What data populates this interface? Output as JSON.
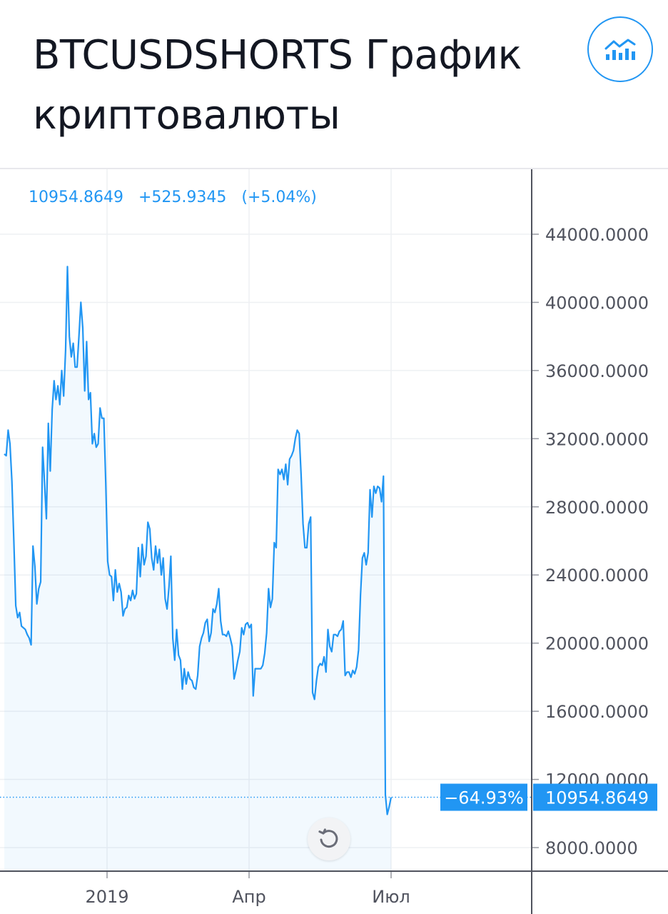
{
  "page": {
    "title": "BTCUSDSHORTS График криптовалюты"
  },
  "legend": {
    "price": "10954.8649",
    "change": "+525.9345",
    "change_pct": "(+5.04%)"
  },
  "colors": {
    "accent": "#2196f3",
    "grid": "#eef0f3",
    "text": "#131722"
  },
  "icons": {
    "chart_button": "chart-bars-icon",
    "reset": "rotate-icon"
  },
  "chart_data": {
    "type": "area",
    "x_tick_labels": [
      "2019",
      "Апр",
      "Июл"
    ],
    "y_ticks": [
      "8000.0000",
      "12000.0000",
      "16000.0000",
      "20000.0000",
      "24000.0000",
      "28000.0000",
      "32000.0000",
      "36000.0000",
      "40000.0000",
      "44000.0000"
    ],
    "ylim": [
      7000,
      46500
    ],
    "grid": true,
    "last_value": 10954.8649,
    "last_value_label": "10954.8649",
    "pct_label": "−64.93%",
    "series": [
      {
        "values": [
          31100,
          31000,
          32500,
          31700,
          29500,
          26000,
          22200,
          21500,
          21800,
          21000,
          20900,
          20800,
          20500,
          20300,
          19900,
          25700,
          24500,
          22300,
          23200,
          23600,
          31500,
          29500,
          27300,
          32900,
          30100,
          33700,
          35400,
          34300,
          35100,
          34000,
          36000,
          34500,
          37200,
          42100,
          38000,
          36800,
          37600,
          36200,
          36200,
          38000,
          40000,
          38500,
          34800,
          37700,
          34300,
          34700,
          31700,
          32300,
          31500,
          31700,
          33800,
          33200,
          33200,
          29400,
          24800,
          24000,
          23900,
          22500,
          24300,
          23000,
          23500,
          23000,
          21600,
          22000,
          22100,
          22800,
          22500,
          23100,
          22600,
          22900,
          25600,
          23900,
          25800,
          24600,
          25100,
          27100,
          26700,
          25000,
          24300,
          25700,
          24700,
          25500,
          24000,
          25000,
          22600,
          22000,
          23300,
          25100,
          20300,
          19000,
          20800,
          19300,
          19000,
          17300,
          18500,
          17600,
          18300,
          17900,
          17800,
          17400,
          17300,
          18100,
          19800,
          20300,
          20600,
          21200,
          21400,
          20100,
          20600,
          22000,
          21800,
          22300,
          23200,
          21300,
          20500,
          20500,
          20400,
          20700,
          20300,
          19800,
          17900,
          18400,
          19000,
          19500,
          20900,
          20500,
          21100,
          21200,
          20900,
          21100,
          16900,
          18500,
          18500,
          18500,
          18500,
          18700,
          19400,
          20600,
          23200,
          22100,
          22600,
          25900,
          25600,
          30200,
          29900,
          30200,
          29600,
          30500,
          29300,
          30800,
          31000,
          31300,
          32000,
          32500,
          32300,
          29900,
          27000,
          25600,
          25600,
          27000,
          27400,
          17100,
          16700,
          17800,
          18600,
          18800,
          18700,
          19200,
          18300,
          20800,
          19800,
          19500,
          20500,
          20500,
          20400,
          20700,
          20800,
          21300,
          18100,
          18300,
          18300,
          18000,
          18400,
          18200,
          18600,
          19600,
          22800,
          25000,
          25300,
          24600,
          25300,
          29000,
          27400,
          29200,
          28800,
          29200,
          29100,
          28300,
          29800,
          11100,
          9950,
          10400,
          10954.8649
        ]
      }
    ]
  }
}
